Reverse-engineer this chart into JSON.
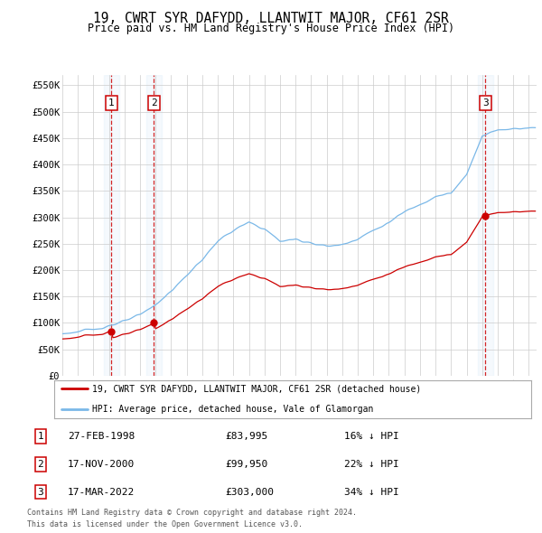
{
  "title": "19, CWRT SYR DAFYDD, LLANTWIT MAJOR, CF61 2SR",
  "subtitle": "Price paid vs. HM Land Registry's House Price Index (HPI)",
  "ylabel_ticks": [
    "£0",
    "£50K",
    "£100K",
    "£150K",
    "£200K",
    "£250K",
    "£300K",
    "£350K",
    "£400K",
    "£450K",
    "£500K",
    "£550K"
  ],
  "ytick_values": [
    0,
    50000,
    100000,
    150000,
    200000,
    250000,
    300000,
    350000,
    400000,
    450000,
    500000,
    550000
  ],
  "xmin": 1995.0,
  "xmax": 2025.5,
  "ymin": 0,
  "ymax": 570000,
  "transactions": [
    {
      "num": 1,
      "date_str": "27-FEB-1998",
      "date_x": 1998.15,
      "price": 83995,
      "pct": "16%"
    },
    {
      "num": 2,
      "date_str": "17-NOV-2000",
      "date_x": 2000.88,
      "price": 99950,
      "pct": "22%"
    },
    {
      "num": 3,
      "date_str": "17-MAR-2022",
      "date_x": 2022.21,
      "price": 303000,
      "pct": "34%"
    }
  ],
  "legend_line1": "19, CWRT SYR DAFYDD, LLANTWIT MAJOR, CF61 2SR (detached house)",
  "legend_line2": "HPI: Average price, detached house, Vale of Glamorgan",
  "footnote1": "Contains HM Land Registry data © Crown copyright and database right 2024.",
  "footnote2": "This data is licensed under the Open Government Licence v3.0.",
  "hpi_color": "#7ab8e8",
  "price_color": "#cc0000",
  "vline_color": "#cc0000",
  "background_color": "#ffffff",
  "grid_color": "#cccccc",
  "hpi_anchors_x": [
    1995,
    1996,
    1997,
    1998,
    1999,
    2000,
    2001,
    2002,
    2003,
    2004,
    2005,
    2006,
    2007,
    2008,
    2009,
    2010,
    2011,
    2012,
    2013,
    2014,
    2015,
    2016,
    2017,
    2018,
    2019,
    2020,
    2021,
    2022,
    2023,
    2024,
    2025
  ],
  "hpi_anchors_y": [
    80000,
    83000,
    88000,
    95000,
    103000,
    115000,
    135000,
    160000,
    190000,
    220000,
    255000,
    275000,
    290000,
    278000,
    255000,
    258000,
    252000,
    245000,
    248000,
    260000,
    275000,
    290000,
    310000,
    325000,
    340000,
    345000,
    380000,
    455000,
    465000,
    468000,
    470000
  ]
}
